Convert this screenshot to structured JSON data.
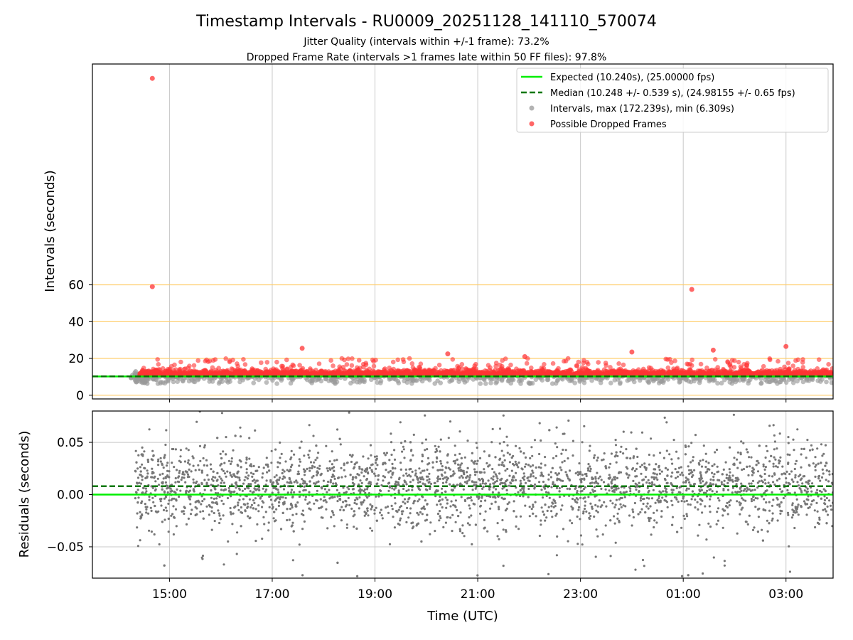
{
  "figure": {
    "title": "Timestamp Intervals - RU0009_20251128_141110_570074",
    "subtitle_1": "Jitter Quality (intervals within +/-1 frame): 73.2%",
    "subtitle_2": "Dropped Frame Rate (intervals >1 frames late within 50 FF files): 97.8%"
  },
  "chart_data": [
    {
      "type": "scatter",
      "panel": "top",
      "ylabel": "Intervals (seconds)",
      "ylim": [
        -2,
        180
      ],
      "yticks": [
        0,
        20,
        40,
        60
      ],
      "reference_lines_y": [
        0,
        20,
        40,
        60
      ],
      "reference_line_color": "#ffcc66",
      "grid": "x",
      "legend_placement": "top-right",
      "legend": [
        {
          "label": "Expected (10.240s), (25.00000 fps)",
          "color": "#00ee00",
          "style": "solid"
        },
        {
          "label": "Median (10.248 +/- 0.539 s), (24.98155 +/- 0.65 fps)",
          "color": "#007700",
          "style": "dashed"
        },
        {
          "label": "Intervals, max (172.239s), min (6.309s)",
          "color": "#999999",
          "style": "marker"
        },
        {
          "label": "Possible Dropped Frames",
          "color": "#ff3333",
          "style": "marker"
        }
      ],
      "expected_interval": 10.24,
      "median_interval": 10.248,
      "max_interval": 172.239,
      "min_interval": 6.309,
      "dropped_outliers": [
        {
          "time": "14:40",
          "value": 172.2
        },
        {
          "time": "14:40",
          "value": 59.0
        },
        {
          "time": "01:10",
          "value": 57.5
        },
        {
          "time": "17:35",
          "value": 25.5
        },
        {
          "time": "03:00",
          "value": 26.5
        },
        {
          "time": "20:25",
          "value": 22.5
        },
        {
          "time": "01:35",
          "value": 24.5
        },
        {
          "time": "21:55",
          "value": 21.0
        },
        {
          "time": "00:00",
          "value": 23.5
        }
      ],
      "series": [
        {
          "name": "Intervals",
          "description_range": "about 6-18 s, concentrated near 10.2 s",
          "color": "#999999"
        },
        {
          "name": "Possible Dropped Frames",
          "description_range": "about 11-22 s band across the whole night",
          "color": "#ff3333"
        }
      ]
    },
    {
      "type": "scatter",
      "panel": "bottom",
      "ylabel": "Residuals (seconds)",
      "xlabel": "Time (UTC)",
      "ylim": [
        -0.08,
        0.08
      ],
      "yticks": [
        0.05,
        0.0,
        -0.05
      ],
      "ytick_labels": [
        "0.05",
        "0.00",
        "−0.05"
      ],
      "grid": "both",
      "expected_residual": 0.0,
      "median_residual": 0.008,
      "residual_spread_approx": 0.02,
      "point_color": "#777777"
    }
  ],
  "x_axis": {
    "range": [
      "13:30",
      "03:55"
    ],
    "ticks": [
      "15:00",
      "17:00",
      "19:00",
      "21:00",
      "23:00",
      "01:00",
      "03:00"
    ],
    "data_start": "14:15",
    "data_end": "03:55"
  }
}
